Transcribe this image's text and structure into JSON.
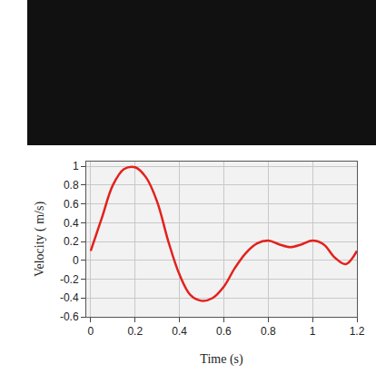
{
  "chart_data": {
    "type": "line",
    "x": [
      0,
      0.05,
      0.1,
      0.15,
      0.2,
      0.25,
      0.3,
      0.35,
      0.4,
      0.45,
      0.5,
      0.55,
      0.6,
      0.65,
      0.7,
      0.75,
      0.8,
      0.85,
      0.9,
      0.95,
      1.0,
      1.05,
      1.1,
      1.15,
      1.2
    ],
    "values": [
      0.1,
      0.45,
      0.8,
      0.97,
      0.99,
      0.88,
      0.62,
      0.2,
      -0.15,
      -0.37,
      -0.43,
      -0.4,
      -0.28,
      -0.08,
      0.08,
      0.18,
      0.21,
      0.17,
      0.14,
      0.17,
      0.21,
      0.17,
      0.03,
      -0.04,
      0.1
    ],
    "color": "#e3211c",
    "x_label": "Time (s)",
    "y_label": "Velocity ( m/s)",
    "xlim": [
      -0.02,
      1.2
    ],
    "ylim": [
      -0.6,
      1.05
    ],
    "xticks": [
      0,
      0.2,
      0.4,
      0.6,
      0.8,
      1,
      1.2
    ],
    "yticks": [
      -0.6,
      -0.4,
      -0.2,
      0,
      0.2,
      0.4,
      0.6,
      0.8,
      1
    ],
    "grid": true
  }
}
